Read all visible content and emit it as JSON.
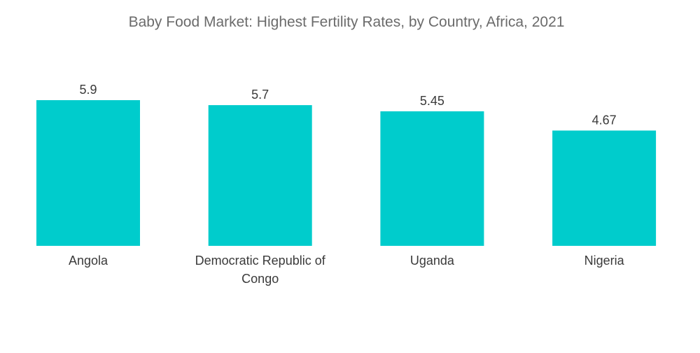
{
  "chart_data": {
    "type": "bar",
    "title": "Baby Food Market: Highest Fertility Rates, by Country, Africa, 2021",
    "categories": [
      "Angola",
      "Democratic Republic of Congo",
      "Uganda",
      "Nigeria"
    ],
    "category_lines": [
      [
        "Angola"
      ],
      [
        "Democratic Republic of",
        "Congo"
      ],
      [
        "Uganda"
      ],
      [
        "Nigeria"
      ]
    ],
    "values": [
      5.9,
      5.7,
      5.45,
      4.67
    ],
    "value_labels": [
      "5.9",
      "5.7",
      "5.45",
      "4.67"
    ],
    "xlabel": "",
    "ylabel": "",
    "ylim": [
      0,
      5.9
    ],
    "grid": false,
    "legend": "none",
    "colors": {
      "bar": "#00cccc"
    }
  }
}
